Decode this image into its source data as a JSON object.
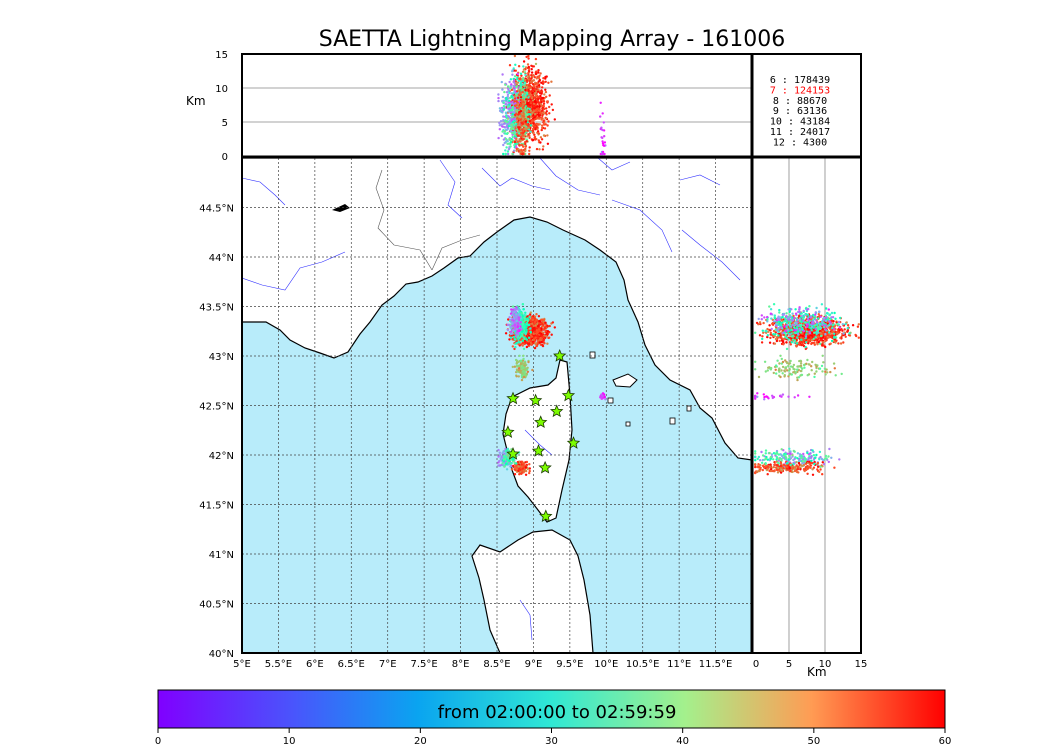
{
  "chart_data": {
    "type": "scatter",
    "title": "SAETTA Lightning Mapping Array - 161006",
    "colorbar": {
      "label": "from 02:00:00 to 02:59:59",
      "ticks": [
        "0",
        "10",
        "20",
        "30",
        "40",
        "50",
        "60"
      ],
      "range": [
        0,
        60
      ],
      "colormap": "rainbow"
    },
    "map": {
      "lon_range": [
        5.0,
        12.0
      ],
      "lat_range": [
        40.0,
        45.0
      ],
      "lon_ticks": [
        "5°E",
        "5.5°E",
        "6°E",
        "6.5°E",
        "7°E",
        "7.5°E",
        "8°E",
        "8.5°E",
        "9°E",
        "9.5°E",
        "10°E",
        "10.5°E",
        "11°E",
        "11.5°E"
      ],
      "lat_ticks": [
        "40°N",
        "40.5°N",
        "41°N",
        "41.5°N",
        "42°N",
        "42.5°N",
        "43°N",
        "43.5°N",
        "44°N",
        "44.5°N"
      ],
      "grid": true,
      "sea_color": "#b8ecfa",
      "land_color": "#ffffff"
    },
    "alt_lon_panel": {
      "ylabel": "Km",
      "y_range": [
        0,
        15
      ],
      "y_ticks": [
        "0",
        "5",
        "10",
        "15"
      ]
    },
    "alt_lat_panel": {
      "xlabel": "Km",
      "x_range": [
        0,
        15
      ],
      "x_ticks": [
        "0",
        "5",
        "10",
        "15"
      ]
    },
    "stations": [
      [
        9.36,
        43.0
      ],
      [
        8.72,
        42.57
      ],
      [
        9.03,
        42.55
      ],
      [
        9.48,
        42.6
      ],
      [
        9.32,
        42.44
      ],
      [
        9.1,
        42.33
      ],
      [
        8.65,
        42.23
      ],
      [
        9.55,
        42.12
      ],
      [
        9.07,
        42.04
      ],
      [
        8.72,
        42.01
      ],
      [
        9.16,
        41.87
      ],
      [
        9.17,
        41.38
      ]
    ],
    "clusters": [
      {
        "lon": 8.95,
        "lat": 43.25,
        "alt": 7.5,
        "t": 56,
        "n": 900,
        "sx": 0.12,
        "sy": 0.07
      },
      {
        "lon": 8.82,
        "lat": 43.32,
        "alt": 7.0,
        "t": 28,
        "n": 250,
        "sx": 0.06,
        "sy": 0.09
      },
      {
        "lon": 8.75,
        "lat": 43.35,
        "alt": 6.5,
        "t": 10,
        "n": 120,
        "sx": 0.04,
        "sy": 0.07
      },
      {
        "lon": 8.85,
        "lat": 42.88,
        "alt": 6.0,
        "t": 42,
        "n": 120,
        "sx": 0.05,
        "sy": 0.05
      },
      {
        "lon": 8.63,
        "lat": 41.96,
        "alt": 6.0,
        "t": 12,
        "n": 120,
        "sx": 0.05,
        "sy": 0.04
      },
      {
        "lon": 8.83,
        "lat": 41.87,
        "alt": 5.0,
        "t": 54,
        "n": 200,
        "sx": 0.05,
        "sy": 0.03
      },
      {
        "lon": 8.68,
        "lat": 41.98,
        "alt": 5.0,
        "t": 32,
        "n": 80,
        "sx": 0.05,
        "sy": 0.04
      },
      {
        "lon": 9.95,
        "lat": 42.59,
        "alt": 3.0,
        "t": 2,
        "n": 25,
        "sx": 0.02,
        "sy": 0.015
      }
    ],
    "counts": [
      {
        "text": "6  :   178439",
        "color": "#000000"
      },
      {
        "text": "7  :   124153",
        "color": "#ff0000"
      },
      {
        "text": "8  :    88670",
        "color": "#000000"
      },
      {
        "text": "9  :    63136",
        "color": "#000000"
      },
      {
        "text": "10  :    43184",
        "color": "#000000"
      },
      {
        "text": "11  :    24017",
        "color": "#000000"
      },
      {
        "text": "12  :     4300",
        "color": "#000000"
      }
    ]
  }
}
